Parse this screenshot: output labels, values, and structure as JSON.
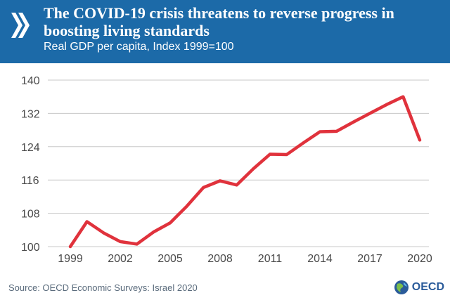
{
  "header": {
    "title": "The COVID-19 crisis threatens to reverse progress in boosting living standards",
    "subtitle": "Real GDP per capita, Index 1999=100"
  },
  "footer": {
    "source": "Source: OECD Economic Surveys: Israel 2020",
    "brand": "OECD"
  },
  "colors": {
    "header_bg": "#1c6aa8",
    "line": "#e0323c",
    "grid": "#c8c8c8"
  },
  "chart_data": {
    "type": "line",
    "title": "The COVID-19 crisis threatens to reverse progress in boosting living standards",
    "subtitle": "Real GDP per capita, Index 1999=100",
    "xlabel": "",
    "ylabel": "",
    "x": [
      1999,
      2000,
      2001,
      2002,
      2003,
      2004,
      2005,
      2006,
      2007,
      2008,
      2009,
      2010,
      2011,
      2012,
      2013,
      2014,
      2015,
      2016,
      2017,
      2018,
      2019,
      2020
    ],
    "series": [
      {
        "values": [
          100,
          106,
          103.3,
          101.2,
          100.6,
          103.5,
          105.7,
          109.7,
          114.2,
          115.8,
          114.8,
          118.7,
          122.2,
          122.1,
          124.9,
          127.6,
          127.7,
          129.9,
          132,
          134.1,
          136,
          125.6
        ]
      }
    ],
    "xticks": [
      "1999",
      "2002",
      "2005",
      "2008",
      "2011",
      "2014",
      "2017",
      "2020"
    ],
    "yticks": [
      "100",
      "108",
      "116",
      "124",
      "132",
      "140"
    ],
    "xlim": [
      1999,
      2020
    ],
    "ylim": [
      100,
      140
    ],
    "grid": "horizontal",
    "legend": "none"
  }
}
